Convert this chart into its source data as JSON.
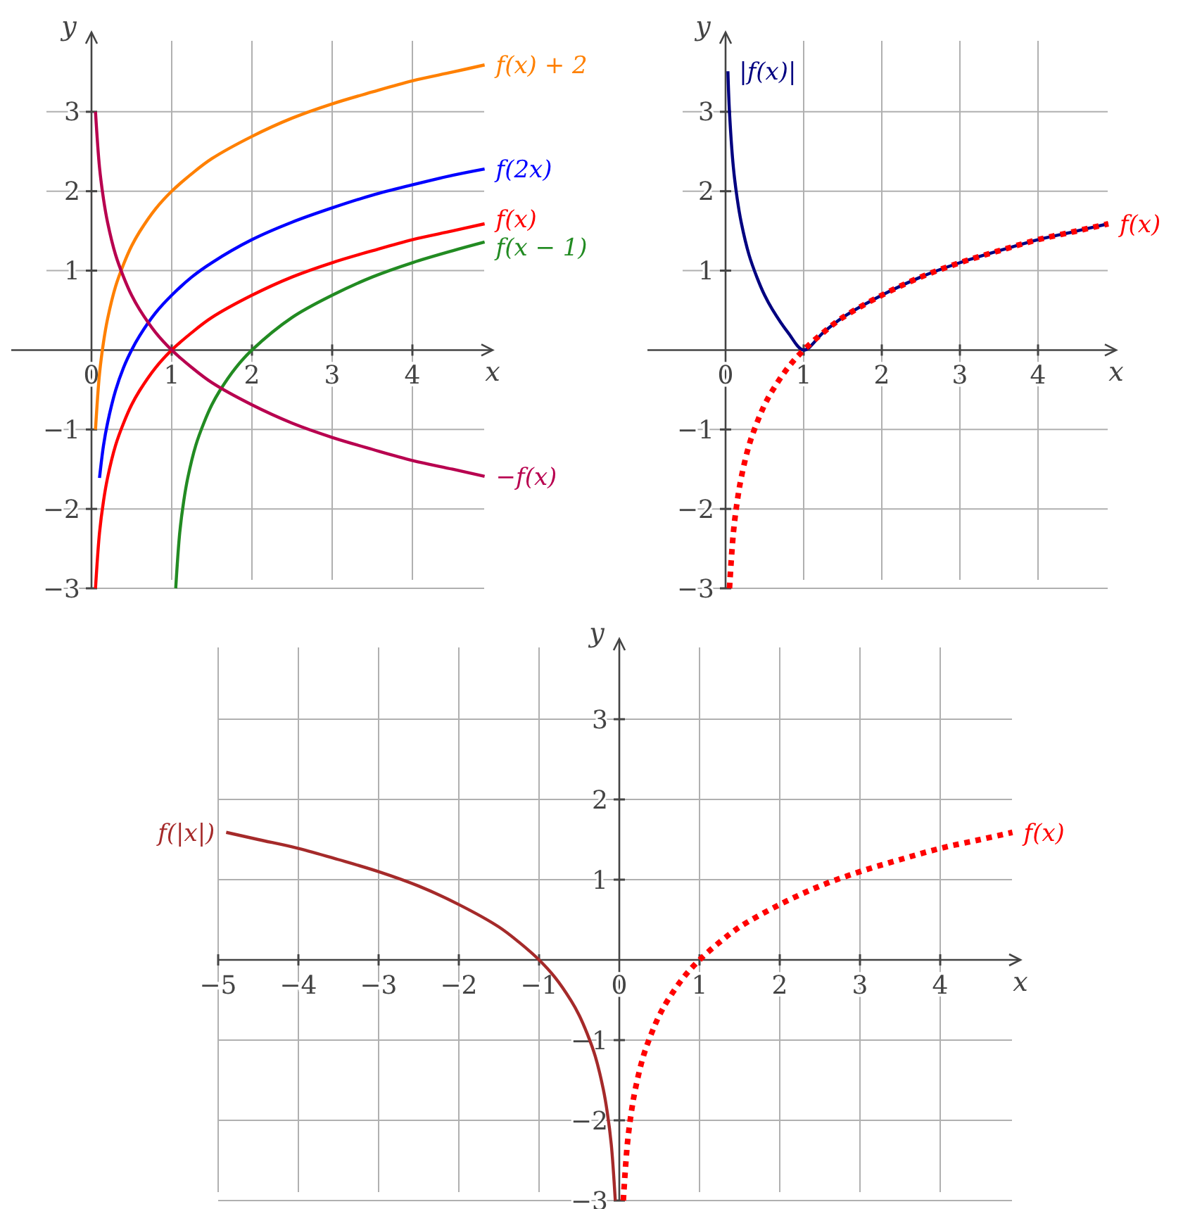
{
  "chart_data": [
    {
      "type": "line",
      "xlabel": "x",
      "ylabel": "y",
      "grid": true,
      "legend": false,
      "xlim": [
        -1,
        5
      ],
      "ylim": [
        -3,
        4
      ],
      "xticks": [
        0,
        1,
        2,
        3,
        4
      ],
      "yticks": [
        {
          "value": -3,
          "label": "−3"
        },
        {
          "value": -2,
          "label": "−2"
        },
        {
          "value": -1,
          "label": "−1"
        },
        1,
        2,
        3
      ],
      "series": [
        {
          "name": "f(x) + 2",
          "color": "#ff8000",
          "line_style": "solid",
          "x": [
            0.05,
            0.1,
            0.15,
            0.2,
            0.3,
            0.4,
            0.5,
            0.6,
            0.8,
            1,
            1.25,
            1.5,
            2,
            2.5,
            3,
            3.5,
            4,
            4.5,
            4.9
          ],
          "values": [
            -1.0,
            -0.3,
            0.1,
            0.39,
            0.8,
            1.08,
            1.31,
            1.49,
            1.78,
            2,
            2.22,
            2.41,
            2.69,
            2.92,
            3.1,
            3.25,
            3.39,
            3.5,
            3.59
          ]
        },
        {
          "name": "f(2x)",
          "color": "#0000ff",
          "line_style": "solid",
          "x": [
            0.1,
            0.15,
            0.2,
            0.3,
            0.4,
            0.5,
            0.6,
            0.8,
            1,
            1.25,
            1.5,
            2,
            2.5,
            3,
            3.5,
            4,
            4.5,
            4.9
          ],
          "values": [
            -1.61,
            -1.2,
            -0.92,
            -0.51,
            -0.22,
            0,
            0.18,
            0.47,
            0.69,
            0.92,
            1.1,
            1.39,
            1.61,
            1.79,
            1.95,
            2.08,
            2.2,
            2.28
          ]
        },
        {
          "name": "f(x)",
          "color": "#ff0000",
          "line_style": "solid",
          "x": [
            0.05,
            0.1,
            0.15,
            0.2,
            0.3,
            0.4,
            0.5,
            0.6,
            0.8,
            1,
            1.25,
            1.5,
            2,
            2.5,
            3,
            3.5,
            4,
            4.5,
            4.9
          ],
          "values": [
            -3.0,
            -2.3,
            -1.9,
            -1.61,
            -1.2,
            -0.92,
            -0.69,
            -0.51,
            -0.22,
            0,
            0.22,
            0.41,
            0.69,
            0.92,
            1.1,
            1.25,
            1.39,
            1.5,
            1.59
          ]
        },
        {
          "name": "f(x − 1)",
          "color": "#228b22",
          "line_style": "solid",
          "x": [
            1.05,
            1.1,
            1.15,
            1.2,
            1.3,
            1.4,
            1.5,
            1.6,
            1.8,
            2,
            2.5,
            3,
            3.5,
            4,
            4.5,
            4.9
          ],
          "values": [
            -3.0,
            -2.3,
            -1.9,
            -1.61,
            -1.2,
            -0.92,
            -0.69,
            -0.51,
            -0.22,
            0,
            0.41,
            0.69,
            0.92,
            1.1,
            1.25,
            1.36
          ]
        },
        {
          "name": "−f(x)",
          "color": "#b8004f",
          "line_style": "solid",
          "x": [
            0.05,
            0.1,
            0.15,
            0.2,
            0.3,
            0.4,
            0.5,
            0.6,
            0.8,
            1,
            1.25,
            1.5,
            2,
            2.5,
            3,
            3.5,
            4,
            4.5,
            4.9
          ],
          "values": [
            3.0,
            2.3,
            1.9,
            1.61,
            1.2,
            0.92,
            0.69,
            0.51,
            0.22,
            0,
            -0.22,
            -0.41,
            -0.69,
            -0.92,
            -1.1,
            -1.25,
            -1.39,
            -1.5,
            -1.59
          ]
        }
      ]
    },
    {
      "type": "line",
      "xlabel": "x",
      "ylabel": "y",
      "grid": true,
      "legend": false,
      "xlim": [
        -1,
        5
      ],
      "ylim": [
        -3,
        4
      ],
      "xticks": [
        0,
        1,
        2,
        3,
        4
      ],
      "yticks": [
        {
          "value": -3,
          "label": "−3"
        },
        {
          "value": -2,
          "label": "−2"
        },
        {
          "value": -1,
          "label": "−1"
        },
        1,
        2,
        3
      ],
      "series": [
        {
          "name": "|f(x)|",
          "color": "#000080",
          "line_style": "solid",
          "x": [
            4.9,
            4.5,
            4,
            3.5,
            3,
            2.5,
            2,
            1.5,
            1.25,
            1,
            0.8,
            0.6,
            0.5,
            0.4,
            0.3,
            0.2,
            0.15,
            0.1,
            0.05,
            0.03
          ],
          "values": [
            1.59,
            1.5,
            1.39,
            1.25,
            1.1,
            0.92,
            0.69,
            0.41,
            0.22,
            0,
            0.22,
            0.51,
            0.69,
            0.92,
            1.2,
            1.61,
            1.9,
            2.3,
            3.0,
            3.51
          ]
        },
        {
          "name": "f(x)",
          "color": "#ff0000",
          "line_style": "dotted",
          "x": [
            0.05,
            0.1,
            0.15,
            0.2,
            0.3,
            0.4,
            0.5,
            0.6,
            0.8,
            1,
            1.25,
            1.5,
            2,
            2.5,
            3,
            3.5,
            4,
            4.5,
            4.9
          ],
          "values": [
            -3.0,
            -2.3,
            -1.9,
            -1.61,
            -1.2,
            -0.92,
            -0.69,
            -0.51,
            -0.22,
            0,
            0.22,
            0.41,
            0.69,
            0.92,
            1.1,
            1.25,
            1.39,
            1.5,
            1.59
          ]
        }
      ]
    },
    {
      "type": "line",
      "xlabel": "x",
      "ylabel": "y",
      "grid": true,
      "legend": false,
      "xlim": [
        -5,
        5
      ],
      "ylim": [
        -3,
        4
      ],
      "xticks": [
        {
          "value": -5,
          "label": "−5"
        },
        {
          "value": -4,
          "label": "−4"
        },
        {
          "value": -3,
          "label": "−3"
        },
        {
          "value": -2,
          "label": "−2"
        },
        {
          "value": -1,
          "label": "−1"
        },
        0,
        1,
        2,
        3,
        4
      ],
      "yticks": [
        {
          "value": -3,
          "label": "−3"
        },
        {
          "value": -2,
          "label": "−2"
        },
        {
          "value": -1,
          "label": "−1"
        },
        1,
        2,
        3
      ],
      "series": [
        {
          "name": "f(|x|)",
          "color": "#a52a2a",
          "line_style": "solid",
          "x": [
            -0.05,
            -0.1,
            -0.15,
            -0.2,
            -0.3,
            -0.4,
            -0.5,
            -0.6,
            -0.8,
            -1,
            -1.25,
            -1.5,
            -2,
            -2.5,
            -3,
            -3.5,
            -4,
            -4.5,
            -4.9
          ],
          "values": [
            -3.0,
            -2.3,
            -1.9,
            -1.61,
            -1.2,
            -0.92,
            -0.69,
            -0.51,
            -0.22,
            0,
            0.22,
            0.41,
            0.69,
            0.92,
            1.1,
            1.25,
            1.39,
            1.5,
            1.59
          ]
        },
        {
          "name": "f(x)",
          "color": "#ff0000",
          "line_style": "dotted",
          "x": [
            0.05,
            0.1,
            0.15,
            0.2,
            0.3,
            0.4,
            0.5,
            0.6,
            0.8,
            1,
            1.25,
            1.5,
            2,
            2.5,
            3,
            3.5,
            4,
            4.5,
            4.9
          ],
          "values": [
            -3.0,
            -2.3,
            -1.9,
            -1.61,
            -1.2,
            -0.92,
            -0.69,
            -0.51,
            -0.22,
            0,
            0.22,
            0.41,
            0.69,
            0.92,
            1.1,
            1.25,
            1.39,
            1.5,
            1.59
          ]
        }
      ]
    }
  ]
}
